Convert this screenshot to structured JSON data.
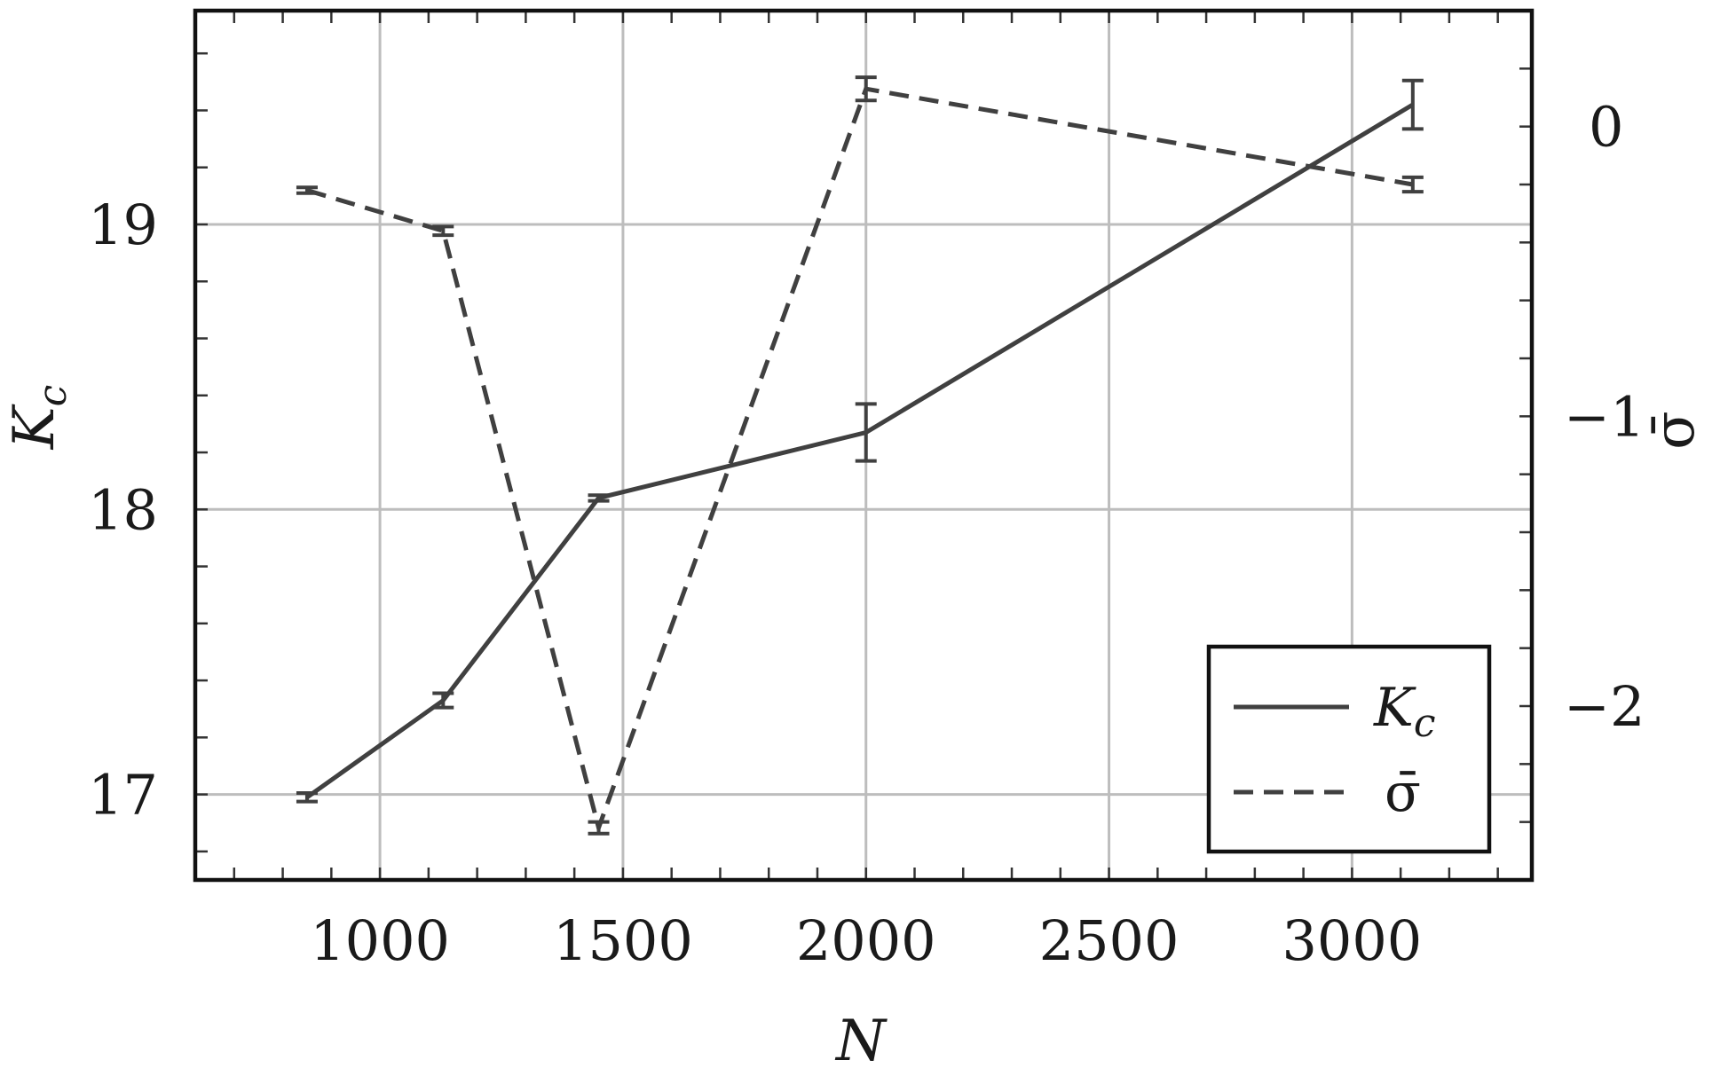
{
  "chart_data": {
    "type": "line",
    "xlabel": "N",
    "ylabel": {
      "main": "K",
      "sub": "c"
    },
    "y2label": "σ̄",
    "xlim": [
      620,
      3370
    ],
    "ylim": [
      16.7,
      19.75
    ],
    "y2lim": [
      -2.6,
      0.4
    ],
    "xticks": [
      1000,
      1500,
      2000,
      2500,
      3000
    ],
    "yticks": [
      17,
      18,
      19
    ],
    "y2ticks": [
      0,
      -1,
      -2
    ],
    "y2tick_labels": [
      "0",
      "−1",
      "−2"
    ],
    "grid": true,
    "legend_position": "bottom-right",
    "series": [
      {
        "name": {
          "main": "K",
          "sub": "c"
        },
        "axis": "left",
        "style": "solid",
        "points": [
          {
            "x": 850,
            "y": 16.99,
            "err": 0.015
          },
          {
            "x": 1130,
            "y": 17.33,
            "err": 0.025
          },
          {
            "x": 1450,
            "y": 18.04,
            "err": 0.01
          },
          {
            "x": 2000,
            "y": 18.27,
            "err": 0.1
          },
          {
            "x": 3125,
            "y": 19.42,
            "err": 0.085
          }
        ]
      },
      {
        "name": {
          "main": "σ̄",
          "sub": ""
        },
        "axis": "right",
        "style": "dashed",
        "points": [
          {
            "x": 850,
            "y": -0.22,
            "err": 0.01
          },
          {
            "x": 1130,
            "y": -0.36,
            "err": 0.015
          },
          {
            "x": 1450,
            "y": -2.42,
            "err": 0.02
          },
          {
            "x": 2000,
            "y": 0.13,
            "err": 0.04
          },
          {
            "x": 3125,
            "y": -0.2,
            "err": 0.025
          }
        ]
      }
    ]
  }
}
